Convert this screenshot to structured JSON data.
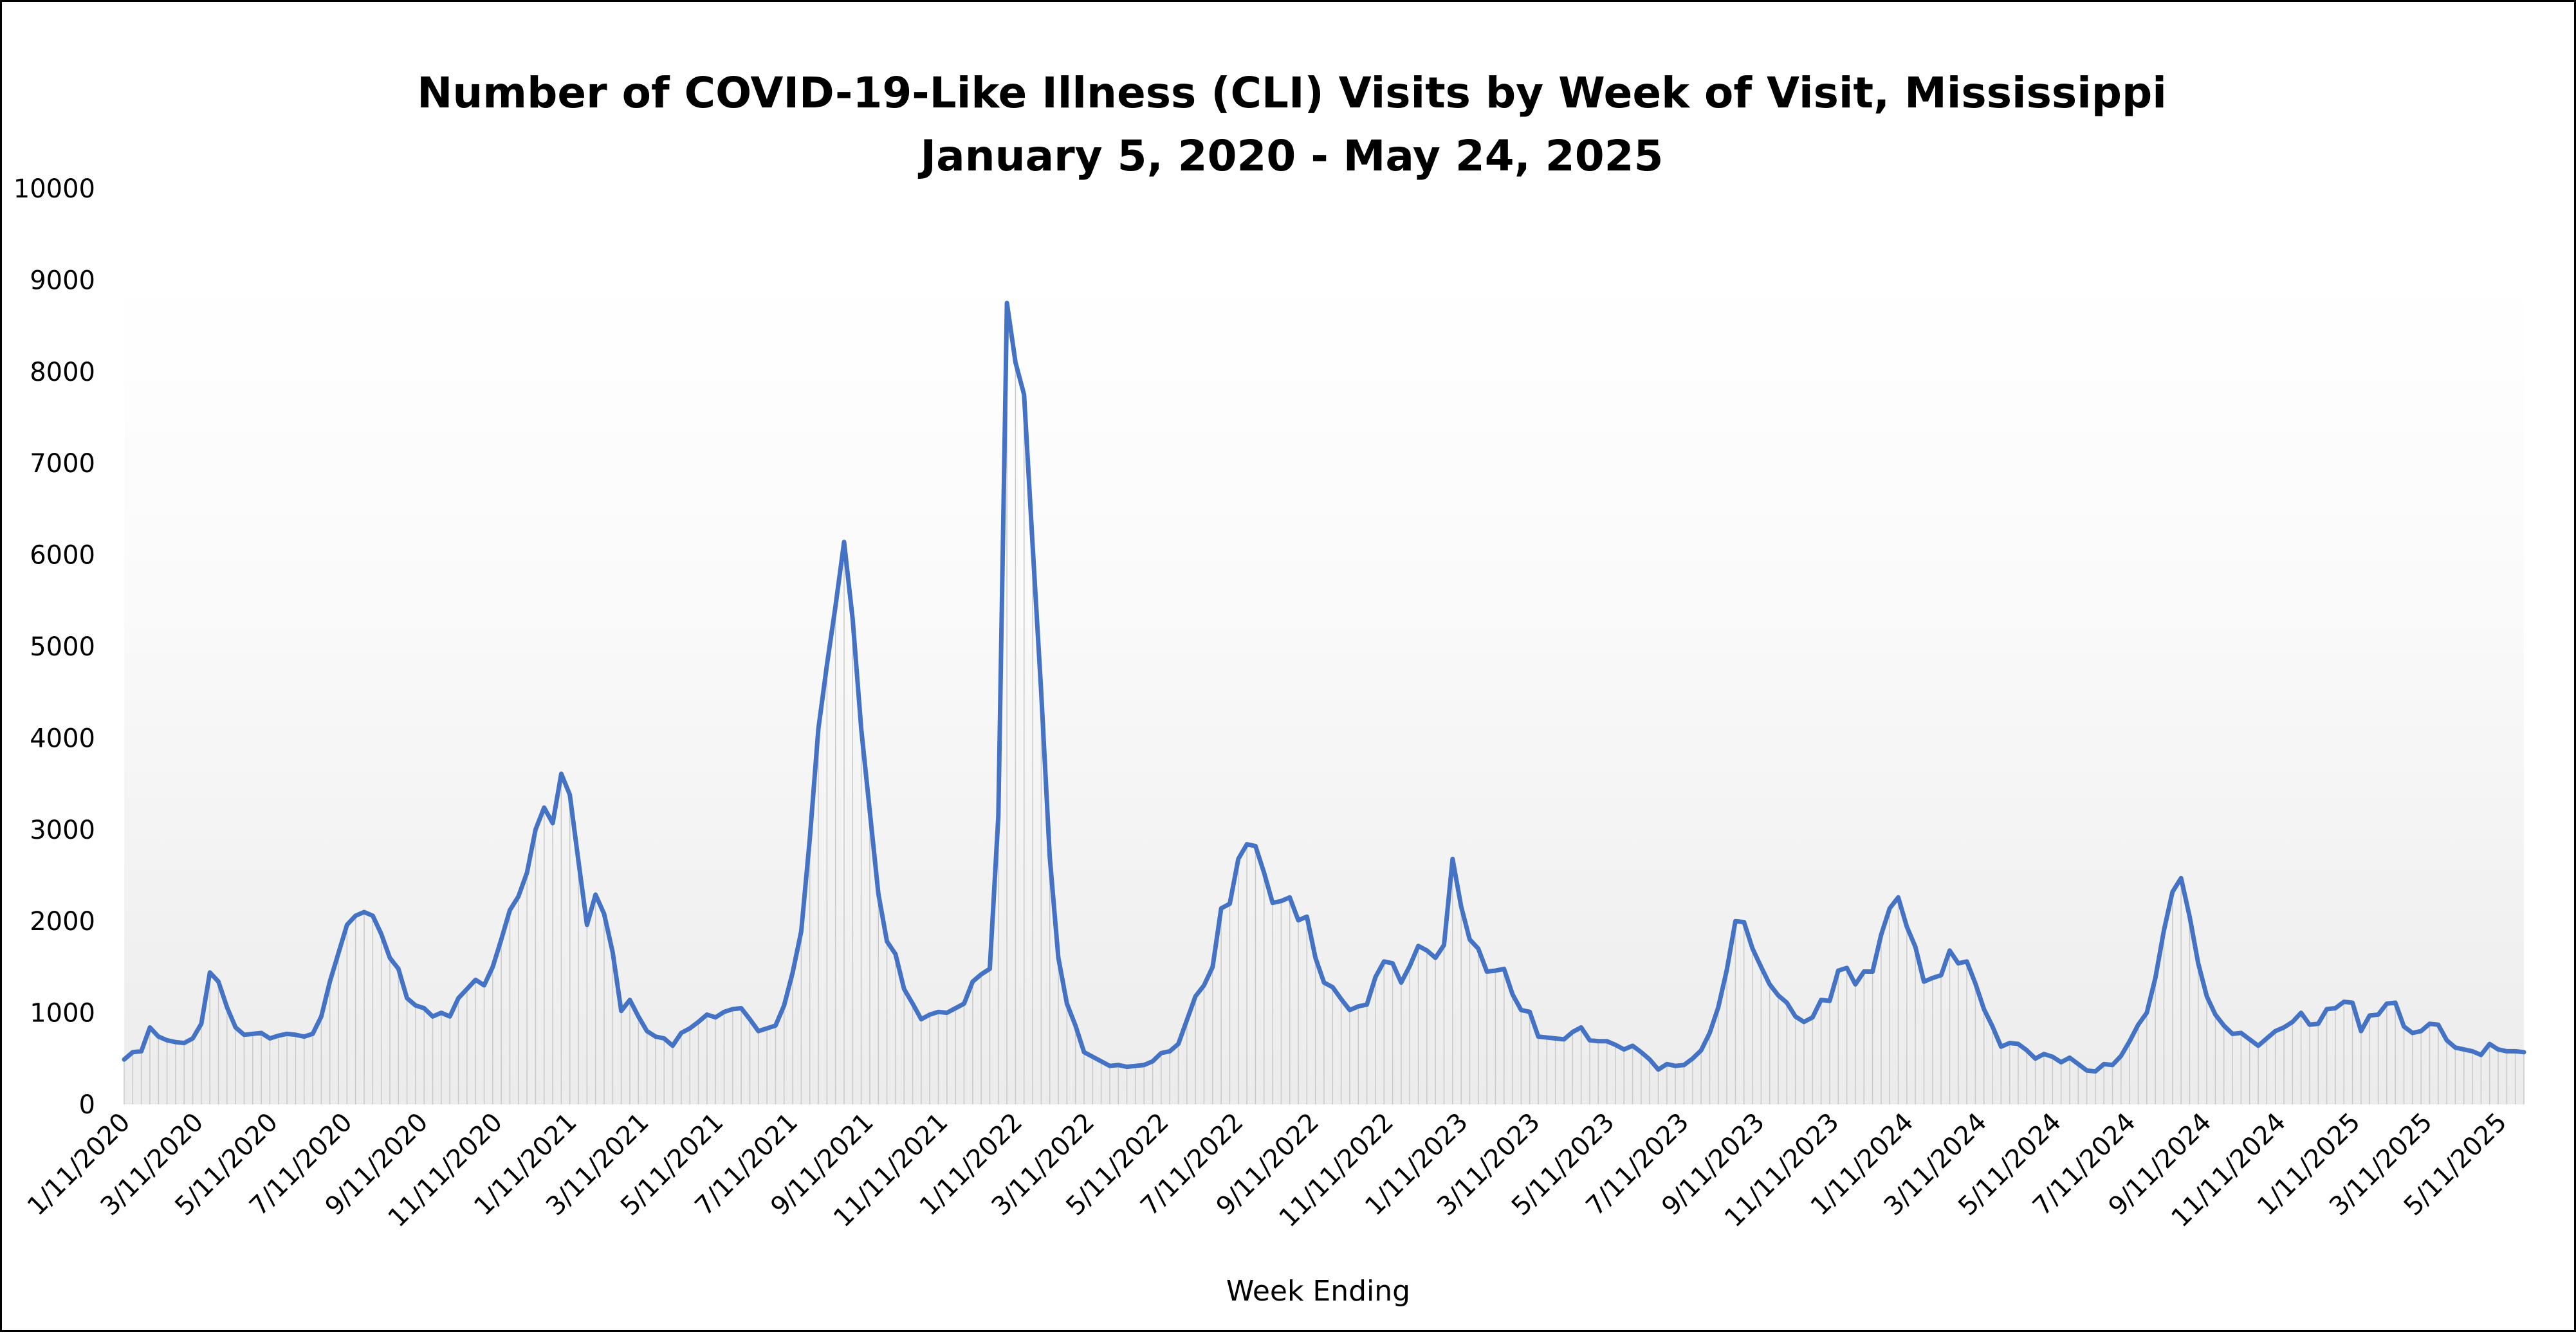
{
  "chart_data": {
    "type": "line",
    "title": "Number of COVID-19-Like Illness (CLI) Visits by Week of Visit, Mississippi",
    "subtitle": "January 5, 2020 - May 24, 2025",
    "xlabel": "Week Ending",
    "ylabel": "",
    "ylim": [
      0,
      10000
    ],
    "y_ticks": [
      0,
      1000,
      2000,
      3000,
      4000,
      5000,
      6000,
      7000,
      8000,
      9000,
      10000
    ],
    "x_tick_labels": [
      "1/11/2020",
      "3/11/2020",
      "5/11/2020",
      "7/11/2020",
      "9/11/2020",
      "11/11/2020",
      "1/11/2021",
      "3/11/2021",
      "5/11/2021",
      "7/11/2021",
      "9/11/2021",
      "11/11/2021",
      "1/11/2022",
      "3/11/2022",
      "5/11/2022",
      "7/11/2022",
      "9/11/2022",
      "11/11/2022",
      "1/11/2023",
      "3/11/2023",
      "5/11/2023",
      "7/11/2023",
      "9/11/2023",
      "11/11/2023",
      "1/11/2024",
      "3/11/2024",
      "5/11/2024",
      "7/11/2024",
      "9/11/2024",
      "11/11/2024",
      "1/11/2025",
      "3/11/2025",
      "5/11/2025"
    ],
    "x_first": "2020-01-05",
    "x_last": "2025-05-24",
    "grid": "none",
    "legend": "none",
    "series_color": "#4472C4",
    "values": [
      490,
      570,
      580,
      840,
      740,
      700,
      680,
      670,
      720,
      880,
      1440,
      1340,
      1060,
      840,
      760,
      770,
      780,
      720,
      750,
      770,
      760,
      740,
      770,
      960,
      1340,
      1650,
      1960,
      2060,
      2100,
      2060,
      1860,
      1600,
      1480,
      1160,
      1080,
      1050,
      960,
      1000,
      960,
      1160,
      1260,
      1360,
      1300,
      1500,
      1800,
      2120,
      2270,
      2530,
      3000,
      3240,
      3070,
      3610,
      3380,
      2660,
      1960,
      2290,
      2080,
      1660,
      1020,
      1140,
      960,
      800,
      740,
      720,
      640,
      780,
      830,
      900,
      980,
      950,
      1010,
      1040,
      1050,
      930,
      800,
      830,
      860,
      1080,
      1440,
      1890,
      2900,
      4100,
      4800,
      5440,
      6140,
      5300,
      4100,
      3200,
      2300,
      1780,
      1640,
      1260,
      1100,
      930,
      980,
      1010,
      1000,
      1050,
      1100,
      1340,
      1420,
      1480,
      3150,
      8750,
      8100,
      7750,
      6100,
      4500,
      2700,
      1600,
      1100,
      860,
      570,
      520,
      470,
      420,
      430,
      410,
      420,
      430,
      470,
      560,
      580,
      660,
      920,
      1180,
      1300,
      1500,
      2140,
      2190,
      2680,
      2840,
      2820,
      2530,
      2200,
      2220,
      2260,
      2010,
      2050,
      1600,
      1330,
      1280,
      1150,
      1030,
      1070,
      1090,
      1390,
      1560,
      1540,
      1330,
      1510,
      1730,
      1680,
      1600,
      1740,
      2680,
      2160,
      1800,
      1700,
      1450,
      1460,
      1480,
      1200,
      1030,
      1010,
      740,
      730,
      720,
      710,
      790,
      840,
      700,
      690,
      690,
      650,
      600,
      640,
      570,
      490,
      380,
      440,
      420,
      430,
      500,
      590,
      780,
      1060,
      1470,
      2000,
      1990,
      1700,
      1500,
      1310,
      1190,
      1110,
      960,
      900,
      950,
      1140,
      1130,
      1460,
      1490,
      1310,
      1450,
      1450,
      1850,
      2140,
      2260,
      1940,
      1720,
      1340,
      1380,
      1410,
      1680,
      1540,
      1560,
      1320,
      1040,
      850,
      630,
      670,
      660,
      590,
      500,
      550,
      520,
      460,
      510,
      440,
      370,
      360,
      440,
      430,
      530,
      690,
      870,
      1000,
      1380,
      1900,
      2320,
      2470,
      2050,
      1540,
      1180,
      980,
      860,
      770,
      780,
      710,
      640,
      720,
      800,
      840,
      900,
      1000,
      870,
      880,
      1040,
      1050,
      1120,
      1110,
      800,
      970,
      980,
      1100,
      1110,
      850,
      780,
      800,
      880,
      870,
      700,
      620,
      600,
      580,
      540,
      660,
      600,
      580,
      580,
      570
    ]
  }
}
